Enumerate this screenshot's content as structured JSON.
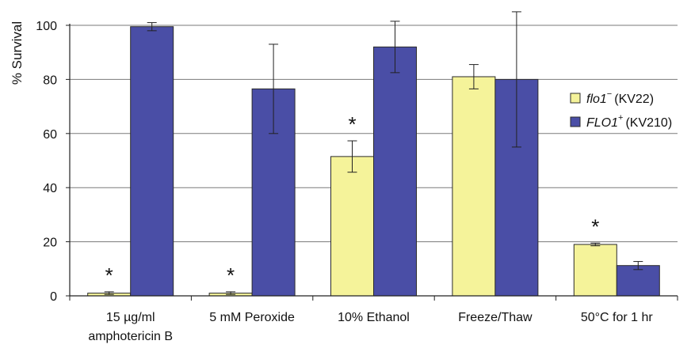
{
  "chart_data": {
    "type": "bar",
    "ylabel": "% Survival",
    "ylim": [
      0,
      100
    ],
    "yticks": [
      0,
      20,
      40,
      60,
      80,
      100
    ],
    "grid": true,
    "legend_position": "right",
    "categories": [
      [
        "15 µg/ml",
        "amphotericin B"
      ],
      [
        "5 mM Peroxide"
      ],
      [
        "10% Ethanol"
      ],
      [
        "Freeze/Thaw"
      ],
      [
        "50°C for 1 hr"
      ]
    ],
    "series": [
      {
        "legend": {
          "gene": "flo1",
          "sup": "−",
          "strain": "(KV22)"
        },
        "color": "#f5f39a",
        "values": [
          1,
          1,
          51.5,
          81,
          19
        ],
        "errors": [
          0.5,
          0.5,
          5.8,
          4.5,
          0.5
        ]
      },
      {
        "legend": {
          "gene": "FLO1",
          "sup": "+",
          "strain": "(KV210)"
        },
        "color": "#4a4ea6",
        "values": [
          99.5,
          76.5,
          92,
          80,
          11.2
        ],
        "errors": [
          1.5,
          16.5,
          9.5,
          25,
          1.5
        ]
      }
    ],
    "significance": {
      "marker": "*",
      "categories": [
        0,
        1,
        2,
        4
      ]
    }
  }
}
